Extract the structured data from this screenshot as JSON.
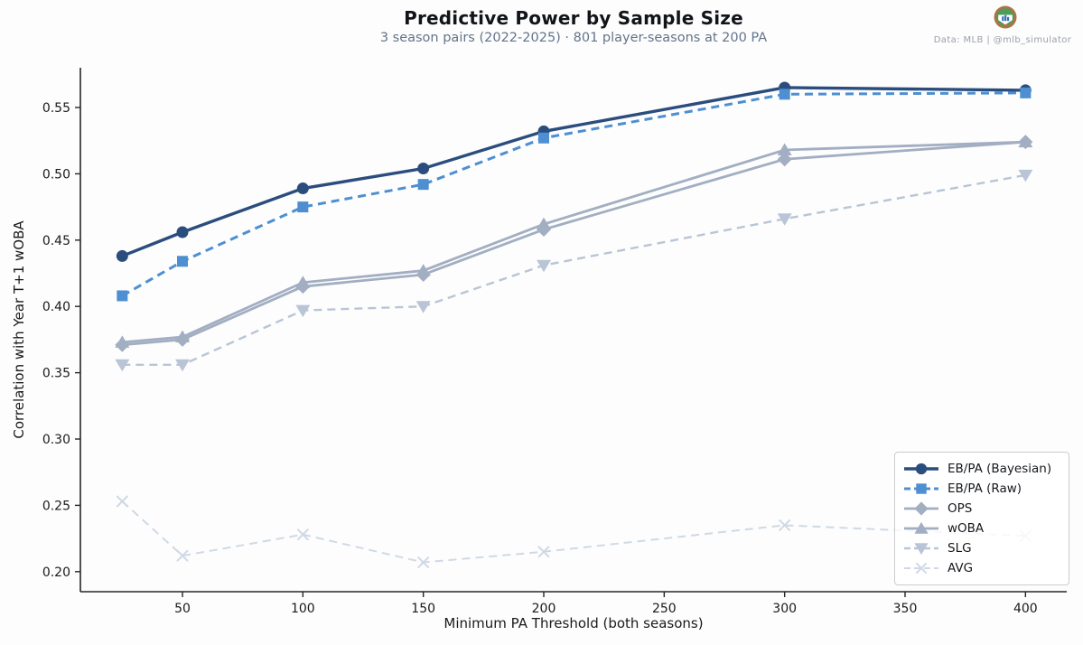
{
  "header": {
    "title": "Predictive Power by Sample Size",
    "subtitle": "3 season pairs (2022-2025) · 801 player-seasons at 200 PA",
    "attribution": "Data: MLB  |  @mlb_simulator"
  },
  "colors": {
    "title": "#111419",
    "subtitle": "#64748b",
    "attribution": "#9aa0a8",
    "spine": "#262626",
    "tick_label": "#1a1a1a",
    "legend_border": "#cccccc",
    "logo_ring": "#b07245",
    "logo_green": "#4e9b5a",
    "logo_bars": "#3b6fb5"
  },
  "chart_data": {
    "type": "line",
    "title": "Predictive Power by Sample Size",
    "subtitle": "3 season pairs (2022-2025) · 801 player-seasons at 200 PA",
    "xlabel": "Minimum PA Threshold (both seasons)",
    "ylabel": "Correlation with Year T+1 wOBA",
    "x": [
      25,
      50,
      100,
      150,
      200,
      300,
      400
    ],
    "xticks": [
      50,
      100,
      150,
      200,
      250,
      300,
      350,
      400
    ],
    "yticks": [
      0.2,
      0.25,
      0.3,
      0.35,
      0.4,
      0.45,
      0.5,
      0.55
    ],
    "xlim": [
      7.6,
      417
    ],
    "ylim": [
      0.185,
      0.58
    ],
    "grid": false,
    "legend_position": "lower right",
    "series": [
      {
        "name": "EB/PA (Bayesian)",
        "values": [
          0.438,
          0.456,
          0.489,
          0.504,
          0.532,
          0.565,
          0.563
        ],
        "color": "#2b4d7e",
        "marker": "circle",
        "dash": "solid",
        "width": 3.4
      },
      {
        "name": "EB/PA (Raw)",
        "values": [
          0.408,
          0.434,
          0.475,
          0.492,
          0.527,
          0.56,
          0.561
        ],
        "color": "#4d8fd1",
        "marker": "square",
        "dash": "dashed",
        "width": 3
      },
      {
        "name": "OPS",
        "values": [
          0.371,
          0.375,
          0.415,
          0.424,
          0.458,
          0.511,
          0.524
        ],
        "color": "#a2aec2",
        "marker": "diamond",
        "dash": "solid",
        "width": 2.8
      },
      {
        "name": "wOBA",
        "values": [
          0.373,
          0.377,
          0.418,
          0.427,
          0.462,
          0.518,
          0.524
        ],
        "color": "#a2aec2",
        "marker": "triangle-up",
        "dash": "solid",
        "width": 2.8
      },
      {
        "name": "SLG",
        "values": [
          0.356,
          0.356,
          0.397,
          0.4,
          0.431,
          0.466,
          0.499
        ],
        "color": "#b9c5d6",
        "marker": "triangle-down",
        "dash": "dashed",
        "width": 2.4
      },
      {
        "name": "AVG",
        "values": [
          0.253,
          0.212,
          0.228,
          0.207,
          0.215,
          0.235,
          0.227
        ],
        "color": "#cfd9e5",
        "marker": "x",
        "dash": "dashed",
        "width": 2
      }
    ]
  }
}
